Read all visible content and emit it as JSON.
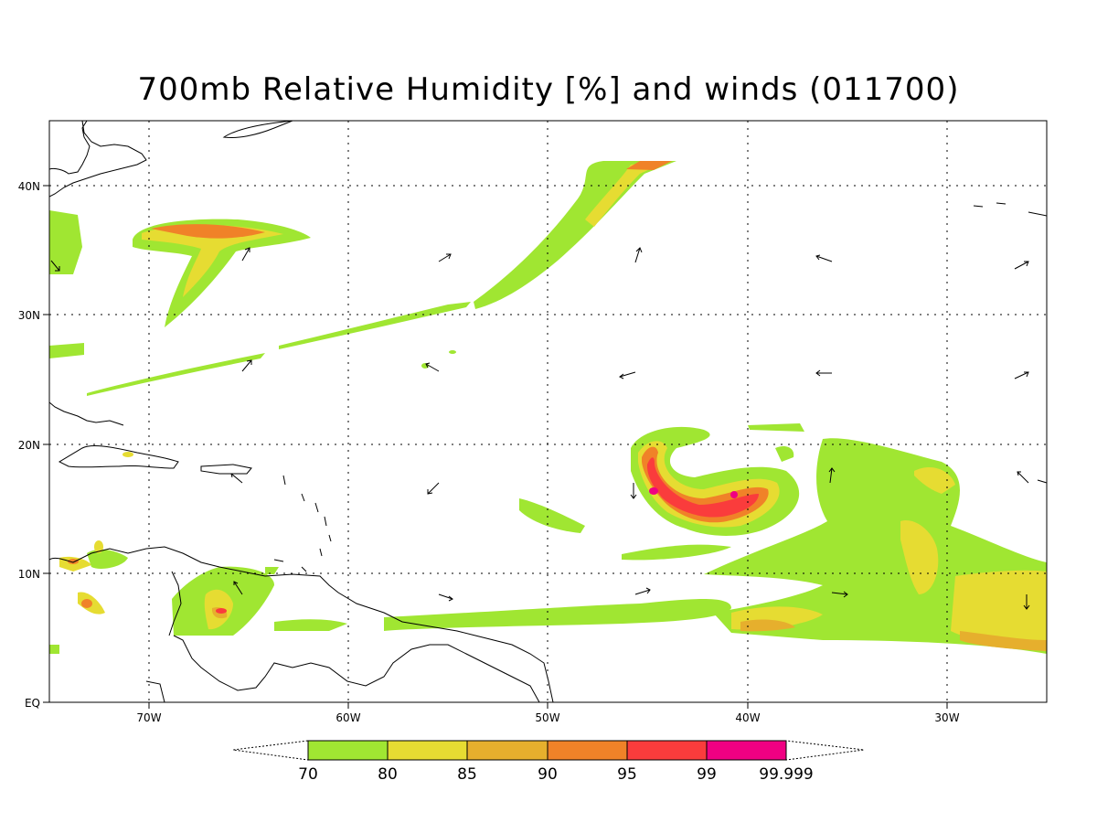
{
  "title": "700mb Relative Humidity [%] and winds (011700)",
  "lat_labels": [
    "40N",
    "30N",
    "20N",
    "10N",
    "EQ"
  ],
  "lon_labels": [
    "70W",
    "60W",
    "50W",
    "40W",
    "30W"
  ],
  "legend": {
    "labels": [
      "70",
      "80",
      "85",
      "90",
      "95",
      "99",
      "99.999"
    ],
    "colors": [
      "#a0e632",
      "#e6dc32",
      "#e6af2d",
      "#f08228",
      "#fa3c3c",
      "#f00082"
    ]
  },
  "colors": {
    "rh70": "#a0e632",
    "rh80": "#e6dc32",
    "rh85": "#e6af2d",
    "rh90": "#f08228",
    "rh95": "#fa3c3c",
    "rh99": "#f00082"
  }
}
